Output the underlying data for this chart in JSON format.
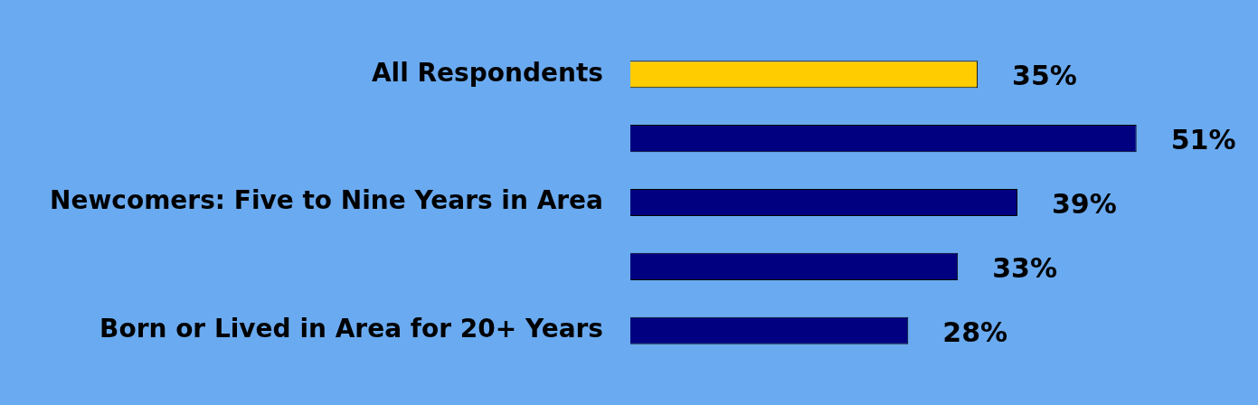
{
  "chart_data": {
    "type": "bar",
    "orientation": "horizontal",
    "categories": [
      "All Respondents",
      null,
      "Newcomers: Five to Nine Years in Area",
      null,
      "Born or Lived in Area for 20+ Years"
    ],
    "values": [
      35,
      51,
      39,
      33,
      28
    ],
    "colors": [
      "#ffcc00",
      "#000080",
      "#000080",
      "#000080",
      "#000080"
    ],
    "value_labels": [
      "35%",
      "51%",
      "39%",
      "33%",
      "28%"
    ],
    "legend": false
  }
}
